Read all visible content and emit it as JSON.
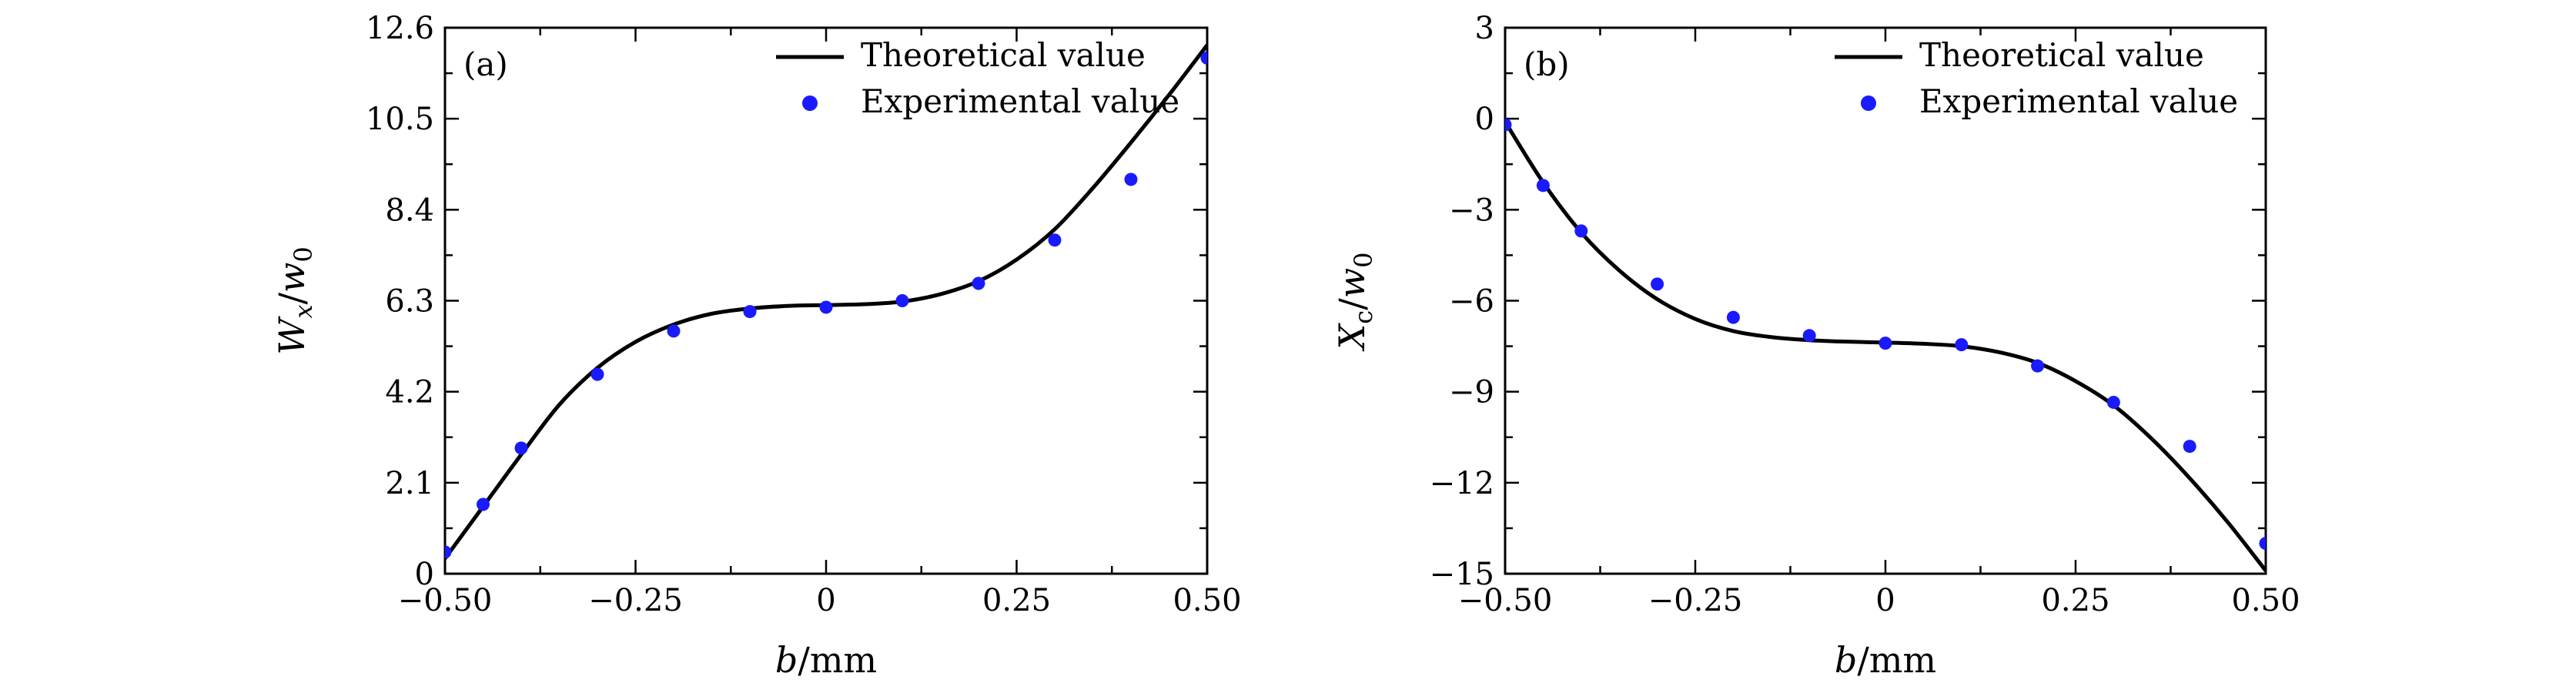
{
  "chart_data": [
    {
      "type": "line",
      "panel_label": "(a)",
      "xlabel": "b/mm",
      "ylabel": "Wx/w0",
      "xlim": [
        -0.5,
        0.5
      ],
      "ylim": [
        0,
        12.6
      ],
      "xticks": [
        -0.5,
        -0.25,
        0,
        0.25,
        0.5
      ],
      "xtick_labels": [
        "−0.50",
        "−0.25",
        "0",
        "0.25",
        "0.50"
      ],
      "yticks": [
        0,
        2.1,
        4.2,
        6.3,
        8.4,
        10.5,
        12.6
      ],
      "ytick_labels": [
        "0",
        "2.1",
        "4.2",
        "6.3",
        "8.4",
        "10.5",
        "12.6"
      ],
      "legend_position": "top-right",
      "series": [
        {
          "name": "Theoretical value",
          "kind": "line",
          "color": "#000000",
          "x": [
            -0.5,
            -0.45,
            -0.4,
            -0.35,
            -0.3,
            -0.25,
            -0.2,
            -0.15,
            -0.1,
            -0.05,
            0,
            0.05,
            0.1,
            0.15,
            0.2,
            0.25,
            0.3,
            0.35,
            0.4,
            0.45,
            0.5
          ],
          "y": [
            0.35,
            1.55,
            2.75,
            3.9,
            4.75,
            5.35,
            5.75,
            6.0,
            6.12,
            6.18,
            6.2,
            6.22,
            6.28,
            6.45,
            6.75,
            7.25,
            7.95,
            8.9,
            9.95,
            11.05,
            12.2
          ]
        },
        {
          "name": "Experimental value",
          "kind": "scatter",
          "color": "#1a1aff",
          "x": [
            -0.5,
            -0.45,
            -0.4,
            -0.3,
            -0.2,
            -0.1,
            0,
            0.1,
            0.2,
            0.3,
            0.4,
            0.5
          ],
          "y": [
            0.5,
            1.6,
            2.9,
            4.6,
            5.6,
            6.05,
            6.15,
            6.3,
            6.7,
            7.7,
            9.1,
            11.9
          ]
        }
      ]
    },
    {
      "type": "line",
      "panel_label": "(b)",
      "xlabel": "b/mm",
      "ylabel": "Xc/w0",
      "xlim": [
        -0.5,
        0.5
      ],
      "ylim": [
        -15,
        3
      ],
      "xticks": [
        -0.5,
        -0.25,
        0,
        0.25,
        0.5
      ],
      "xtick_labels": [
        "−0.50",
        "−0.25",
        "0",
        "0.25",
        "0.50"
      ],
      "yticks": [
        -15,
        -12,
        -9,
        -6,
        -3,
        0,
        3
      ],
      "ytick_labels": [
        "−15",
        "−12",
        "−9",
        "−6",
        "−3",
        "0",
        "3"
      ],
      "legend_position": "top-right",
      "series": [
        {
          "name": "Theoretical value",
          "kind": "line",
          "color": "#000000",
          "x": [
            -0.5,
            -0.45,
            -0.4,
            -0.35,
            -0.3,
            -0.25,
            -0.2,
            -0.15,
            -0.1,
            -0.05,
            0,
            0.05,
            0.1,
            0.15,
            0.2,
            0.25,
            0.3,
            0.35,
            0.4,
            0.45,
            0.5
          ],
          "y": [
            -0.1,
            -2.1,
            -3.75,
            -5.0,
            -5.95,
            -6.6,
            -7.0,
            -7.2,
            -7.3,
            -7.35,
            -7.38,
            -7.42,
            -7.5,
            -7.7,
            -8.05,
            -8.65,
            -9.45,
            -10.55,
            -11.85,
            -13.3,
            -14.9
          ]
        },
        {
          "name": "Experimental value",
          "kind": "scatter",
          "color": "#1a1aff",
          "x": [
            -0.5,
            -0.45,
            -0.4,
            -0.3,
            -0.2,
            -0.1,
            0,
            0.1,
            0.2,
            0.3,
            0.4,
            0.5
          ],
          "y": [
            -0.2,
            -2.2,
            -3.7,
            -5.45,
            -6.55,
            -7.15,
            -7.4,
            -7.45,
            -8.15,
            -9.35,
            -10.8,
            -14.0
          ]
        }
      ]
    }
  ]
}
